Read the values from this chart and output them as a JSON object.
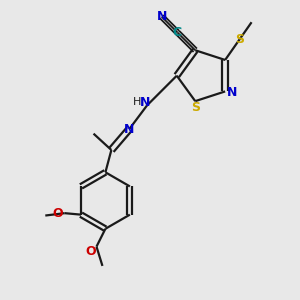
{
  "bg_color": "#e8e8e8",
  "bond_color": "#1a1a1a",
  "nitrogen_color": "#0000cc",
  "sulfur_color": "#ccaa00",
  "oxygen_color": "#cc0000",
  "carbon_color": "#1a1a1a",
  "cyan_color": "#008888",
  "line_width": 1.6,
  "figsize": [
    3.0,
    3.0
  ],
  "dpi": 100,
  "xlim": [
    0,
    10
  ],
  "ylim": [
    0,
    10
  ]
}
